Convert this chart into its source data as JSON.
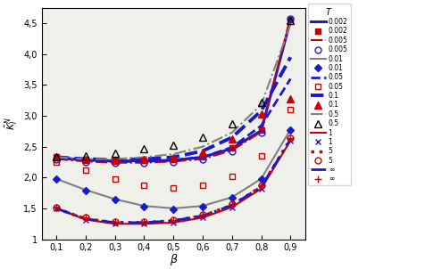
{
  "beta": [
    0.1,
    0.2,
    0.3,
    0.4,
    0.5,
    0.6,
    0.7,
    0.8,
    0.9
  ],
  "T0002_line": {
    "color": "#1a1acd",
    "ls": "-",
    "lw": 2.2,
    "vals": [
      2.32,
      2.28,
      2.27,
      2.27,
      2.28,
      2.33,
      2.47,
      2.76,
      4.55
    ]
  },
  "T0002_sym": {
    "color": "#cc0000",
    "ls": "none",
    "marker": "s",
    "ms": 5,
    "mfc": "#cc0000",
    "vals": [
      2.33,
      2.29,
      2.28,
      2.28,
      2.29,
      2.34,
      2.48,
      2.77,
      4.56
    ]
  },
  "T0005_line": {
    "color": "#cc0000",
    "ls": "-.",
    "lw": 1.5,
    "vals": [
      2.3,
      2.26,
      2.24,
      2.24,
      2.26,
      2.3,
      2.44,
      2.74,
      4.6
    ]
  },
  "T0005_sym": {
    "color": "#1a1acd",
    "ls": "none",
    "marker": "o",
    "ms": 5,
    "mfc": "none",
    "vals": [
      2.3,
      2.25,
      2.23,
      2.24,
      2.25,
      2.3,
      2.43,
      2.73,
      4.58
    ]
  },
  "T001_line": {
    "color": "#808080",
    "ls": "-",
    "lw": 1.5,
    "vals": [
      1.98,
      1.8,
      1.65,
      1.54,
      1.5,
      1.54,
      1.68,
      1.98,
      2.78
    ]
  },
  "T001_sym": {
    "color": "#1a1acd",
    "ls": "none",
    "marker": "D",
    "ms": 4,
    "mfc": "#1a1acd",
    "vals": [
      1.98,
      1.79,
      1.64,
      1.53,
      1.49,
      1.53,
      1.67,
      1.97,
      2.77
    ]
  },
  "T005_line": {
    "color": "#1a1acd",
    "ls": "--",
    "lw": 2.0,
    "vals": [
      2.33,
      2.28,
      2.26,
      2.26,
      2.28,
      2.33,
      2.49,
      2.84,
      3.6
    ]
  },
  "T005_sym": {
    "color": "#cc0000",
    "ls": "none",
    "marker": "s",
    "ms": 5,
    "mfc": "none",
    "vals": [
      2.25,
      2.12,
      1.98,
      1.88,
      1.83,
      1.87,
      2.02,
      2.35,
      3.1
    ]
  },
  "T01_line": {
    "color": "#1a1acd",
    "ls": "--",
    "lw": 2.8,
    "vals": [
      2.33,
      2.3,
      2.29,
      2.3,
      2.33,
      2.43,
      2.65,
      3.08,
      3.95
    ]
  },
  "T01_sym": {
    "color": "#cc0000",
    "ls": "none",
    "marker": "^",
    "ms": 6,
    "mfc": "#cc0000",
    "vals": [
      2.33,
      2.29,
      2.28,
      2.29,
      2.32,
      2.41,
      2.62,
      3.03,
      3.28
    ]
  },
  "T05_line": {
    "color": "#808080",
    "ls": "-.",
    "lw": 1.5,
    "vals": [
      2.33,
      2.3,
      2.3,
      2.33,
      2.38,
      2.5,
      2.73,
      3.18,
      4.48
    ]
  },
  "T05_sym": {
    "color": "#000000",
    "ls": "none",
    "marker": "^",
    "ms": 6,
    "mfc": "none",
    "vals": [
      2.34,
      2.35,
      2.4,
      2.46,
      2.53,
      2.66,
      2.87,
      3.22,
      4.55
    ]
  },
  "T1_line": {
    "color": "#cc0000",
    "ls": "-",
    "lw": 1.5,
    "vals": [
      1.5,
      1.32,
      1.25,
      1.25,
      1.27,
      1.35,
      1.52,
      1.82,
      2.6
    ]
  },
  "T1_sym": {
    "color": "#1a1acd",
    "ls": "none",
    "marker": "x",
    "ms": 5,
    "mfc": "#1a1acd",
    "vals": [
      1.5,
      1.31,
      1.25,
      1.25,
      1.27,
      1.35,
      1.52,
      1.82,
      2.6
    ]
  },
  "T5_line": {
    "color": "#cc0000",
    "ls": ":",
    "lw": 2.5,
    "vals": [
      1.5,
      1.33,
      1.27,
      1.27,
      1.3,
      1.38,
      1.55,
      1.85,
      2.62
    ]
  },
  "T5_sym": {
    "color": "#cc0000",
    "ls": "none",
    "marker": "o",
    "ms": 5,
    "mfc": "none",
    "vals": [
      1.52,
      1.35,
      1.28,
      1.28,
      1.31,
      1.4,
      1.57,
      1.87,
      2.64
    ]
  },
  "Tinf_line": {
    "color": "#1a1acd",
    "ls": "--",
    "lw": 2.0,
    "dashes": [
      6,
      2,
      1,
      2,
      6,
      2
    ],
    "vals": [
      1.5,
      1.33,
      1.27,
      1.27,
      1.3,
      1.38,
      1.55,
      1.85,
      2.62
    ]
  },
  "Tinf_sym": {
    "color": "#cc0000",
    "ls": "none",
    "marker": "+",
    "ms": 6,
    "mfc": "#cc0000",
    "vals": [
      1.52,
      1.35,
      1.28,
      1.28,
      1.31,
      1.4,
      1.57,
      1.87,
      2.64
    ]
  },
  "legend_entries": [
    {
      "label": "0.002",
      "color": "#1a1acd",
      "ls": "-",
      "lw": 2.2
    },
    {
      "label": "0.002",
      "color": "#cc0000",
      "ls": "none",
      "marker": "s",
      "ms": 5,
      "mfc": "#cc0000"
    },
    {
      "label": "0.005",
      "color": "#cc0000",
      "ls": "-.",
      "lw": 1.5
    },
    {
      "label": "0.005",
      "color": "#1a1acd",
      "ls": "none",
      "marker": "o",
      "ms": 5,
      "mfc": "none"
    },
    {
      "label": "0.01",
      "color": "#808080",
      "ls": "-",
      "lw": 1.5
    },
    {
      "label": "0.01",
      "color": "#1a1acd",
      "ls": "none",
      "marker": "D",
      "ms": 4,
      "mfc": "#1a1acd"
    },
    {
      "label": "0.05",
      "color": "#1a1acd",
      "ls": "--",
      "lw": 2.0
    },
    {
      "label": "0.05",
      "color": "#cc0000",
      "ls": "none",
      "marker": "s",
      "ms": 5,
      "mfc": "none"
    },
    {
      "label": "0.1",
      "color": "#1a1acd",
      "ls": "--",
      "lw": 2.8
    },
    {
      "label": "0.1",
      "color": "#cc0000",
      "ls": "none",
      "marker": "^",
      "ms": 6,
      "mfc": "#cc0000"
    },
    {
      "label": "0.5",
      "color": "#808080",
      "ls": "-.",
      "lw": 1.5
    },
    {
      "label": "0.5",
      "color": "#000000",
      "ls": "none",
      "marker": "^",
      "ms": 6,
      "mfc": "none"
    },
    {
      "label": "1",
      "color": "#cc0000",
      "ls": "-",
      "lw": 1.5
    },
    {
      "label": "1",
      "color": "#1a1acd",
      "ls": "none",
      "marker": "x",
      "ms": 5,
      "mfc": "#1a1acd"
    },
    {
      "label": "5",
      "color": "#cc0000",
      "ls": ":",
      "lw": 2.5
    },
    {
      "label": "5",
      "color": "#cc0000",
      "ls": "none",
      "marker": "o",
      "ms": 5,
      "mfc": "none"
    },
    {
      "label": "∞",
      "color": "#1a1acd",
      "ls": "--",
      "lw": 2.0,
      "dashes": [
        6,
        2,
        1,
        2,
        6,
        2
      ]
    },
    {
      "label": "∞",
      "color": "#cc0000",
      "ls": "none",
      "marker": "+",
      "ms": 6,
      "mfc": "#cc0000"
    }
  ],
  "xlim": [
    0.05,
    0.95
  ],
  "ylim": [
    1.0,
    4.75
  ],
  "xticks": [
    0.1,
    0.2,
    0.3,
    0.4,
    0.5,
    0.6,
    0.7,
    0.8,
    0.9
  ],
  "yticks": [
    1.0,
    1.5,
    2.0,
    2.5,
    3.0,
    3.5,
    4.0,
    4.5
  ],
  "xlabel": "β",
  "ylabel": "$\\bar{K}_I^N$",
  "bg": "#f0f0ea"
}
